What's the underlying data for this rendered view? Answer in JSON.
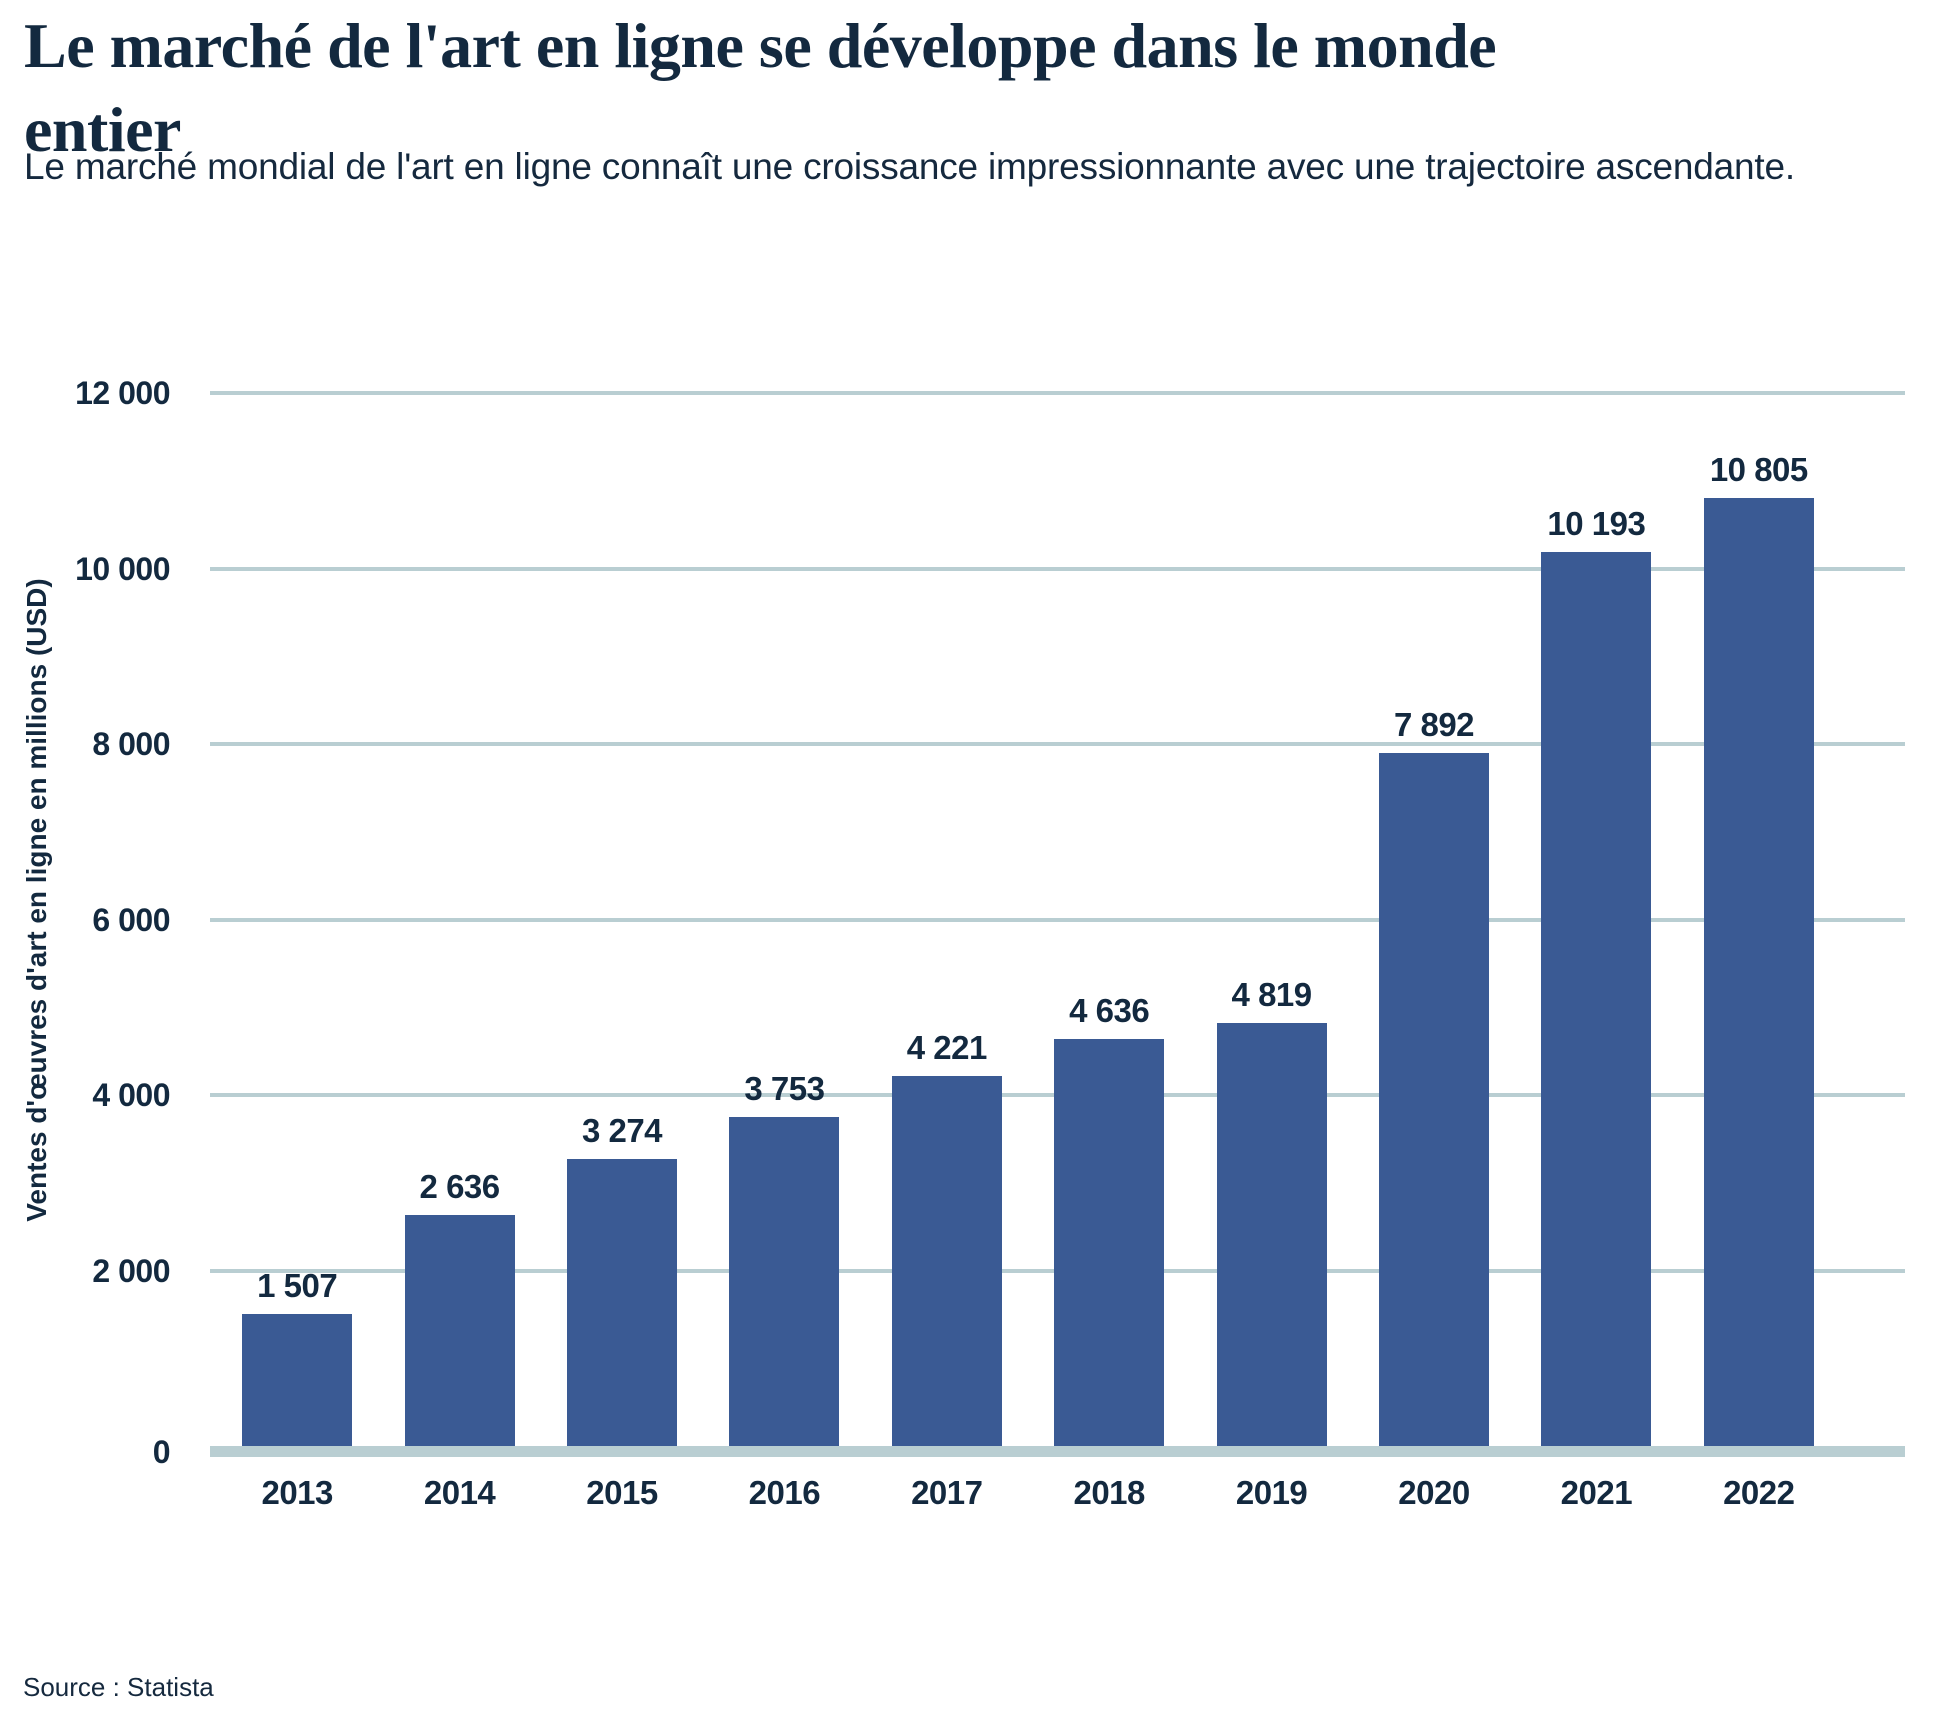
{
  "header": {
    "title_lines": [
      "Le marché de l'art en ligne se développe dans le monde",
      "entier"
    ],
    "subtitle": "Le marché mondial de l'art en ligne connaît une croissance impressionnante avec une trajectoire ascendante."
  },
  "source_label": "Source : Statista",
  "colors": {
    "bar": "#3A5A94",
    "gridline": "#B9CED2",
    "text": "#15293E",
    "title_text": "#13293F"
  },
  "chart_data": {
    "type": "bar",
    "title": "Le marché de l'art en ligne se développe dans le monde entier",
    "subtitle": "Le marché mondial de l'art en ligne connaît une croissance impressionnante avec une trajectoire ascendante.",
    "categories": [
      "2013",
      "2014",
      "2015",
      "2016",
      "2017",
      "2018",
      "2019",
      "2020",
      "2021",
      "2022"
    ],
    "values": [
      1507,
      2636,
      3274,
      3753,
      4221,
      4636,
      4819,
      7892,
      10193,
      10805
    ],
    "value_labels": [
      "1 507",
      "2 636",
      "3 274",
      "3 753",
      "4 221",
      "4 636",
      "4 819",
      "7 892",
      "10 193",
      "10 805"
    ],
    "xlabel": "",
    "ylabel": "Ventes d'œuvres d'art en ligne en millions (USD)",
    "ylim": [
      0,
      12000
    ],
    "y_ticks": [
      0,
      2000,
      4000,
      6000,
      8000,
      10000,
      12000
    ],
    "y_tick_labels": [
      "0",
      "2 000",
      "4 000",
      "6 000",
      "8 000",
      "10 000",
      "12 000"
    ],
    "grid": true,
    "legend": false,
    "source": "Source : Statista"
  }
}
